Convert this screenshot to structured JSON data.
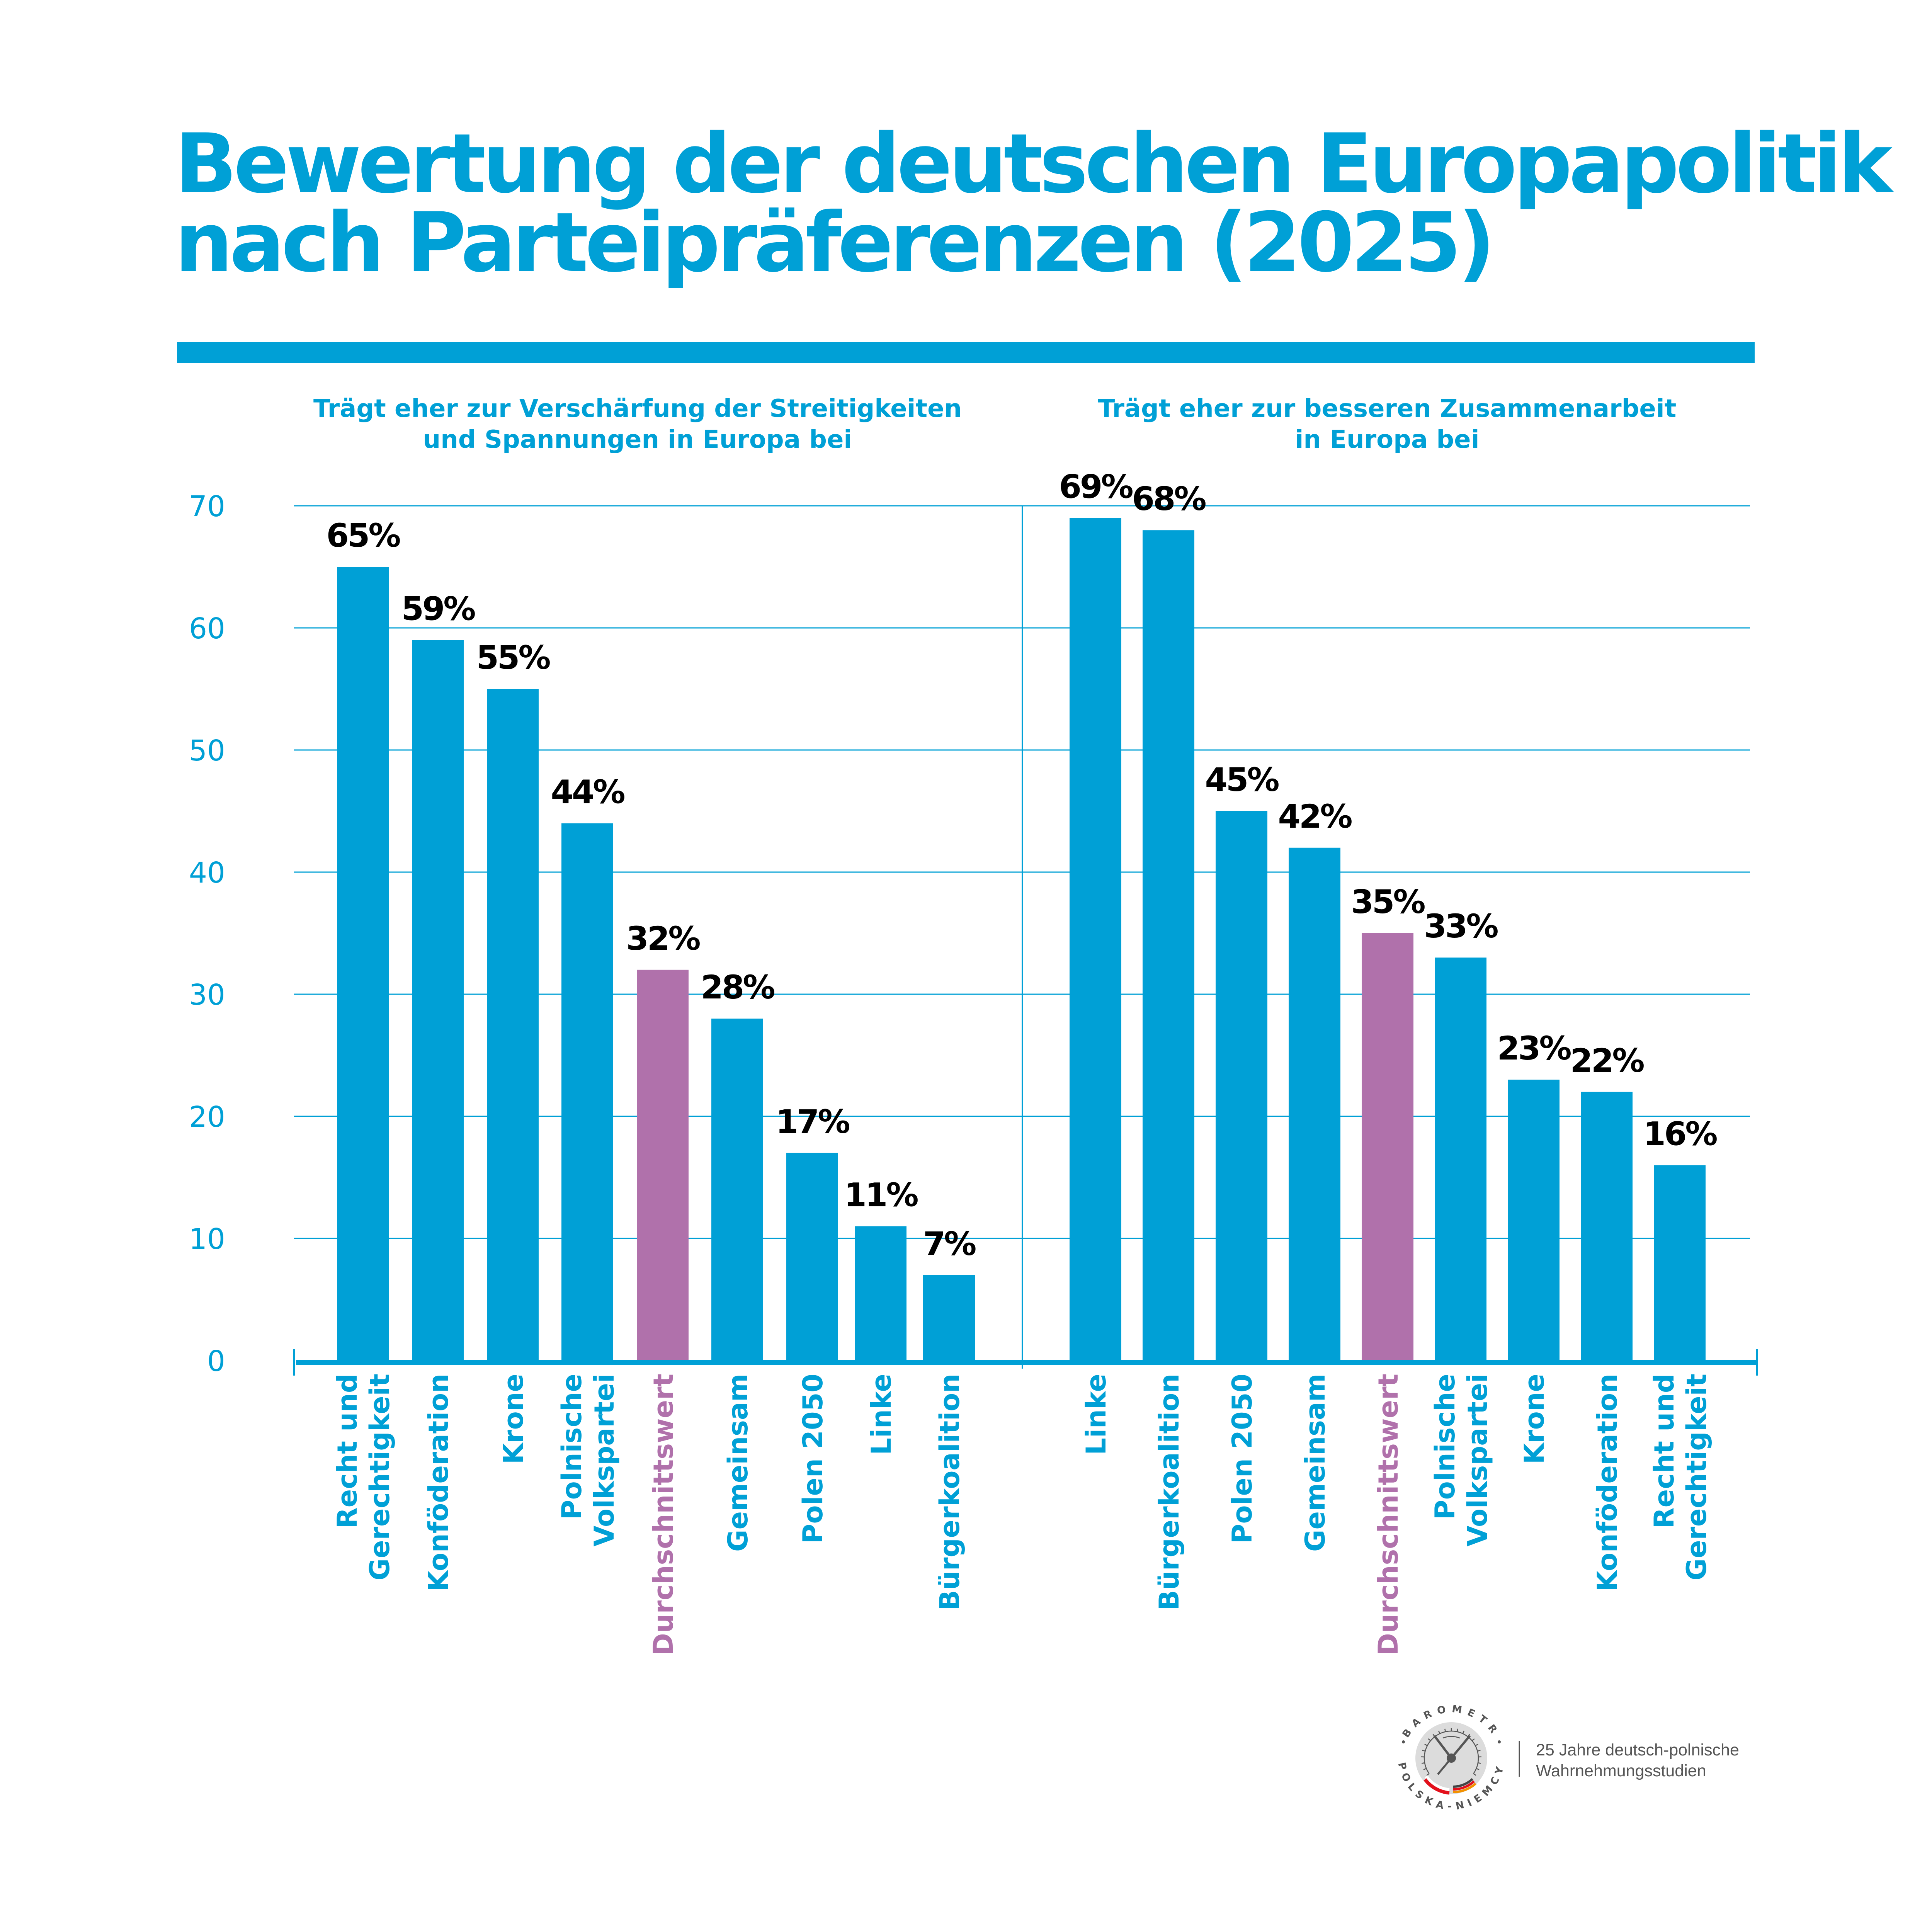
{
  "header": {
    "title_lines": [
      "Bewertung der deutschen Europapolitik",
      "nach Parteipräferenzen (2025)"
    ]
  },
  "colors": {
    "accent": "#00a0d6",
    "average": "#b071ab",
    "value_label": "#000000",
    "logo_gray": "#555555"
  },
  "chart_data": [
    {
      "type": "bar",
      "title": "Trägt eher zur Verschärfung der Streitigkeiten und Spannungen in Europa bei",
      "title_lines": [
        "Trägt eher zur Verschärfung der Streitigkeiten",
        "und Spannungen in Europa bei"
      ],
      "categories": [
        [
          "Recht und",
          "Gerechtigkeit"
        ],
        [
          "Konföderation"
        ],
        [
          "Krone"
        ],
        [
          "Polnische",
          "Volkspartei"
        ],
        [
          "Durchschnittswert"
        ],
        [
          "Gemeinsam"
        ],
        [
          "Polen 2050"
        ],
        [
          "Linke"
        ],
        [
          "Bürgerkoalition"
        ]
      ],
      "values": [
        65,
        59,
        55,
        44,
        32,
        28,
        17,
        11,
        7
      ],
      "value_labels": [
        "65%",
        "59%",
        "55%",
        "44%",
        "32%",
        "28%",
        "17%",
        "11%",
        "7%"
      ],
      "highlight_index": 4,
      "xlabel": "",
      "ylabel": "",
      "ylim": [
        0,
        70
      ],
      "yticks": [
        0,
        10,
        20,
        30,
        40,
        50,
        60,
        70
      ],
      "grid": true
    },
    {
      "type": "bar",
      "title": "Trägt eher zur besseren Zusammenarbeit in Europa bei",
      "title_lines": [
        "Trägt eher zur besseren Zusammenarbeit",
        "in Europa bei"
      ],
      "categories": [
        [
          "Linke"
        ],
        [
          "Bürgerkoalition"
        ],
        [
          "Polen 2050"
        ],
        [
          "Gemeinsam"
        ],
        [
          "Durchschnittswert"
        ],
        [
          "Polnische",
          "Volkspartei"
        ],
        [
          "Krone"
        ],
        [
          "Konföderation"
        ],
        [
          "Recht und",
          "Gerechtigkeit"
        ]
      ],
      "values": [
        69,
        68,
        45,
        42,
        35,
        33,
        23,
        22,
        16
      ],
      "value_labels": [
        "69%",
        "68%",
        "45%",
        "42%",
        "35%",
        "33%",
        "23%",
        "22%",
        "16%"
      ],
      "highlight_index": 4,
      "xlabel": "",
      "ylabel": "",
      "ylim": [
        0,
        70
      ],
      "yticks": [
        0,
        10,
        20,
        30,
        40,
        50,
        60,
        70
      ],
      "grid": true
    }
  ],
  "footer": {
    "logo_ring_top": "BAROMETR",
    "logo_ring_bottom": "POLSKA-NIEMCY",
    "logo_text_lines": [
      "25 Jahre deutsch-polnische",
      "Wahrnehmungsstudien"
    ]
  }
}
